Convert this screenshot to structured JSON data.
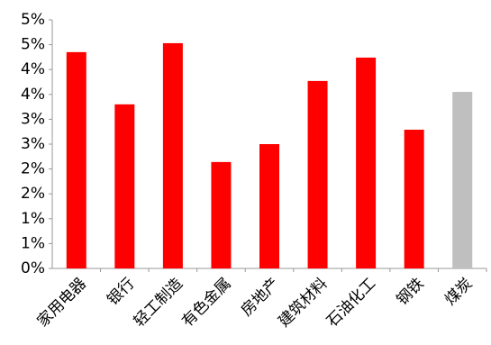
{
  "chart_data": {
    "type": "bar",
    "categories": [
      "家用电器",
      "银行",
      "轻工制造",
      "有色金属",
      "房地产",
      "建筑材料",
      "石油化工",
      "钢铁",
      "煤炭"
    ],
    "values": [
      4.35,
      3.3,
      4.53,
      2.14,
      2.5,
      3.77,
      4.24,
      2.79,
      3.55
    ],
    "colors": [
      "#ff0000",
      "#ff0000",
      "#ff0000",
      "#ff0000",
      "#ff0000",
      "#ff0000",
      "#ff0000",
      "#ff0000",
      "#bfbfbf"
    ],
    "ylim": [
      0,
      5
    ],
    "yticks": [
      {
        "value": 0,
        "label": "0%"
      },
      {
        "value": 0.5,
        "label": "1%"
      },
      {
        "value": 1,
        "label": "1%"
      },
      {
        "value": 1.5,
        "label": "2%"
      },
      {
        "value": 2,
        "label": "2%"
      },
      {
        "value": 2.5,
        "label": "3%"
      },
      {
        "value": 3,
        "label": "3%"
      },
      {
        "value": 3.5,
        "label": "4%"
      },
      {
        "value": 4,
        "label": "4%"
      },
      {
        "value": 4.5,
        "label": "5%"
      },
      {
        "value": 5,
        "label": "5%"
      }
    ],
    "grid": false
  }
}
